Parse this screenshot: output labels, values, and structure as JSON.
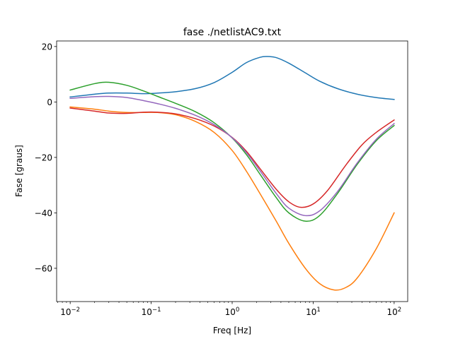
{
  "chart_data": {
    "type": "line",
    "title": "fase ./netlistAC9.txt",
    "xlabel": "Freq [Hz]",
    "ylabel": "Fase [graus]",
    "xscale": "log",
    "xlim": [
      0.0068,
      147
    ],
    "ylim": [
      -72,
      22
    ],
    "grid": false,
    "x_ticks": [
      {
        "value": 0.01,
        "base": "10",
        "exp": "−2"
      },
      {
        "value": 0.1,
        "base": "10",
        "exp": "−1"
      },
      {
        "value": 1,
        "base": "10",
        "exp": "0"
      },
      {
        "value": 10,
        "base": "10",
        "exp": "1"
      },
      {
        "value": 100,
        "base": "10",
        "exp": "2"
      }
    ],
    "y_ticks": [
      {
        "value": 20,
        "label": "20"
      },
      {
        "value": 0,
        "label": "0"
      },
      {
        "value": -20,
        "label": "−20"
      },
      {
        "value": -40,
        "label": "−40"
      },
      {
        "value": -60,
        "label": "−60"
      }
    ],
    "series": [
      {
        "color": "#1f77b4",
        "x": [
          0.01,
          0.02,
          0.03,
          0.05,
          0.08,
          0.12,
          0.2,
          0.35,
          0.6,
          1.0,
          1.5,
          2.2,
          2.7,
          3.5,
          5,
          8,
          12,
          20,
          35,
          60,
          100
        ],
        "y": [
          1.8,
          2.8,
          3.2,
          3.2,
          3.0,
          3.2,
          3.7,
          4.8,
          7.0,
          10.7,
          14.2,
          16.1,
          16.4,
          16.0,
          14.0,
          10.5,
          7.5,
          4.8,
          2.8,
          1.6,
          0.9
        ]
      },
      {
        "color": "#ff7f0e",
        "x": [
          0.01,
          0.02,
          0.03,
          0.05,
          0.08,
          0.12,
          0.2,
          0.35,
          0.6,
          1.0,
          1.5,
          2.2,
          3.5,
          5,
          8,
          12,
          18,
          25,
          35,
          60,
          100
        ],
        "y": [
          -1.8,
          -2.6,
          -3.3,
          -3.8,
          -3.8,
          -3.8,
          -4.6,
          -7.0,
          -11.0,
          -17.5,
          -25.0,
          -33.0,
          -43.0,
          -51.0,
          -60.0,
          -65.5,
          -67.8,
          -67.0,
          -63.5,
          -53.0,
          -40.0
        ]
      },
      {
        "color": "#2ca02c",
        "x": [
          0.01,
          0.02,
          0.03,
          0.05,
          0.08,
          0.12,
          0.2,
          0.35,
          0.6,
          1.0,
          1.5,
          2.2,
          3.5,
          5,
          8,
          12,
          20,
          35,
          60,
          100
        ],
        "y": [
          4.3,
          6.6,
          7.1,
          6.0,
          4.0,
          2.0,
          -0.5,
          -3.5,
          -7.5,
          -13.0,
          -19.0,
          -26.0,
          -34.5,
          -40.0,
          -43.0,
          -41.0,
          -33.0,
          -22.5,
          -14.0,
          -8.5
        ]
      },
      {
        "color": "#d62728",
        "x": [
          0.01,
          0.02,
          0.03,
          0.05,
          0.08,
          0.12,
          0.2,
          0.35,
          0.6,
          1.0,
          1.5,
          2.2,
          3.5,
          5,
          7,
          10,
          15,
          25,
          40,
          60,
          100
        ],
        "y": [
          -2.2,
          -3.3,
          -4.0,
          -4.1,
          -3.7,
          -3.7,
          -4.3,
          -6.0,
          -8.7,
          -12.8,
          -17.8,
          -24.0,
          -31.5,
          -36.0,
          -38.0,
          -36.8,
          -32.0,
          -23.0,
          -15.5,
          -11.0,
          -6.5
        ]
      },
      {
        "color": "#9467bd",
        "x": [
          0.01,
          0.02,
          0.03,
          0.05,
          0.08,
          0.12,
          0.2,
          0.35,
          0.6,
          1.0,
          1.5,
          2.2,
          3.5,
          5,
          8,
          12,
          20,
          35,
          60,
          100
        ],
        "y": [
          1.3,
          1.9,
          2.0,
          1.6,
          0.5,
          -0.6,
          -2.3,
          -4.8,
          -8.2,
          -12.9,
          -18.3,
          -24.8,
          -33.0,
          -38.3,
          -41.0,
          -39.3,
          -32.3,
          -22.0,
          -13.5,
          -7.8
        ]
      }
    ]
  }
}
